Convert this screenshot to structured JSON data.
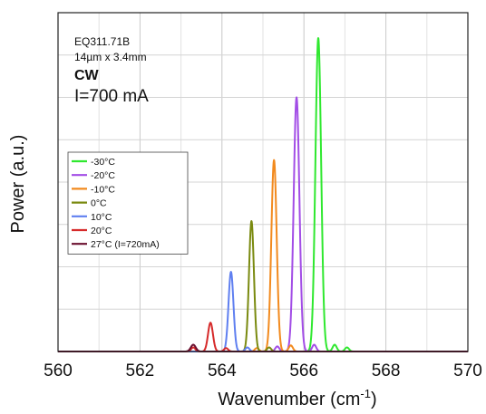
{
  "chart_data": {
    "type": "line",
    "title": "",
    "xlabel_main": "Wavenumber (cm",
    "xlabel_sup": "-1",
    "xlabel_tail": ")",
    "ylabel": "Power (a.u.)",
    "xlim": [
      560,
      570
    ],
    "ylim": [
      0,
      1.0
    ],
    "x_ticks": [
      560,
      562,
      564,
      566,
      568,
      570
    ],
    "x_tick_labels": [
      "560",
      "562",
      "564",
      "566",
      "568",
      "570"
    ],
    "grid": true,
    "legend_position": "middle-left",
    "annotations": [
      {
        "text": "EQ311.71B",
        "style": "small"
      },
      {
        "text": "14µm x 3.4mm",
        "style": "small"
      },
      {
        "text": "CW",
        "style": "bold"
      },
      {
        "text": "I=700 mA",
        "style": "large"
      }
    ],
    "series": [
      {
        "name": "-30°C",
        "color": "#2fe82f",
        "peak_x": 566.35,
        "peak_y": 0.925,
        "width": 0.07,
        "satellites": [
          {
            "x": 566.75,
            "y": 0.02
          },
          {
            "x": 567.05,
            "y": 0.012
          }
        ]
      },
      {
        "name": "-20°C",
        "color": "#a24de6",
        "peak_x": 565.82,
        "peak_y": 0.75,
        "width": 0.07,
        "satellites": [
          {
            "x": 565.35,
            "y": 0.015
          },
          {
            "x": 566.25,
            "y": 0.02
          }
        ]
      },
      {
        "name": "-10°C",
        "color": "#f28a1e",
        "peak_x": 565.27,
        "peak_y": 0.565,
        "width": 0.065,
        "satellites": [
          {
            "x": 564.85,
            "y": 0.01
          },
          {
            "x": 565.68,
            "y": 0.018
          }
        ]
      },
      {
        "name": "0°C",
        "color": "#7a8a10",
        "peak_x": 564.72,
        "peak_y": 0.385,
        "width": 0.06,
        "satellites": [
          {
            "x": 565.15,
            "y": 0.012
          }
        ]
      },
      {
        "name": "10°C",
        "color": "#5f7ff0",
        "peak_x": 564.22,
        "peak_y": 0.235,
        "width": 0.06,
        "satellites": [
          {
            "x": 564.62,
            "y": 0.012
          }
        ]
      },
      {
        "name": "20°C",
        "color": "#d62a2a",
        "peak_x": 563.72,
        "peak_y": 0.085,
        "width": 0.06,
        "satellites": [
          {
            "x": 563.3,
            "y": 0.012
          },
          {
            "x": 564.1,
            "y": 0.01
          }
        ]
      },
      {
        "name": "27°C (I=720mA)",
        "color": "#6b1030",
        "peak_x": 563.3,
        "peak_y": 0.02,
        "width": 0.06,
        "satellites": []
      }
    ]
  }
}
